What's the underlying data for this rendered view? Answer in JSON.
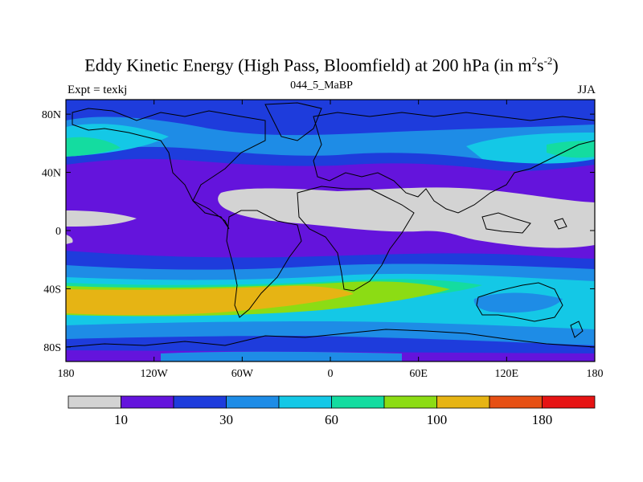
{
  "title_main": "Eddy Kinetic Energy (High Pass, Bloomfield) at 200 hPa (in m",
  "title_sup1": "2",
  "title_mid": "s",
  "title_sup2": "-2",
  "title_end": ")",
  "subtitle": "044_5_MaBP",
  "left_label": "Expt = texkj",
  "right_label": "JJA",
  "lat_ticks": [
    {
      "label": "80N",
      "value": 80
    },
    {
      "label": "40N",
      "value": 40
    },
    {
      "label": "0",
      "value": 0
    },
    {
      "label": "40S",
      "value": -40
    },
    {
      "label": "80S",
      "value": -80
    }
  ],
  "lon_ticks": [
    {
      "label": "180",
      "value": -180
    },
    {
      "label": "120W",
      "value": -120
    },
    {
      "label": "60W",
      "value": -60
    },
    {
      "label": "0",
      "value": 0
    },
    {
      "label": "60E",
      "value": 60
    },
    {
      "label": "120E",
      "value": 120
    },
    {
      "label": "180",
      "value": 180
    }
  ],
  "colorbar": {
    "colors": [
      "#d3d3d3",
      "#6414dc",
      "#1e3cdc",
      "#1e8ce6",
      "#14c8e6",
      "#14dca0",
      "#8cdc14",
      "#e6b414",
      "#e65014",
      "#e61414"
    ],
    "labels": [
      {
        "text": "10",
        "boundary": 1
      },
      {
        "text": "30",
        "boundary": 3
      },
      {
        "text": "60",
        "boundary": 5
      },
      {
        "text": "100",
        "boundary": 7
      },
      {
        "text": "180",
        "boundary": 9
      }
    ]
  }
}
